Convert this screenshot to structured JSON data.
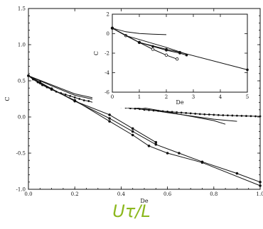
{
  "caption": "Uτ/L",
  "chart_data": [
    {
      "type": "line",
      "xlabel": "De",
      "ylabel": "C",
      "xlim": [
        0,
        1.0
      ],
      "ylim": [
        -1.0,
        1.5
      ],
      "x_ticks": [
        "0.0",
        "0.2",
        "0.4",
        "0.6",
        "0.8",
        "1.0"
      ],
      "y_ticks": [
        "-1.0",
        "-0.5",
        "0.0",
        "0.5",
        "1.0",
        "1.5"
      ],
      "series": [
        {
          "marker": "filled-dense",
          "x": [
            0,
            0.02,
            0.04,
            0.06,
            0.08,
            0.1,
            0.12,
            0.14,
            0.16,
            0.18,
            0.2,
            0.22,
            0.24,
            0.26,
            0.28,
            0.3,
            0.32,
            0.34,
            0.36,
            0.38,
            0.4,
            0.42,
            0.44,
            0.46,
            0.48,
            0.5,
            0.52,
            0.54,
            0.56,
            0.58,
            0.6,
            0.62,
            0.64,
            0.66,
            0.68,
            0.7,
            0.72,
            0.74,
            0.76,
            0.78,
            0.8,
            0.82,
            0.84,
            0.86,
            0.88,
            0.9,
            0.92,
            0.94,
            0.96,
            0.98,
            1.0
          ],
          "y": [
            0.57,
            0.52,
            0.48,
            0.44,
            0.41,
            0.38,
            0.35,
            0.33,
            0.31,
            0.29,
            0.27,
            0.25,
            0.23,
            0.22,
            0.2,
            0.19,
            0.18,
            0.17,
            0.16,
            0.15,
            0.14,
            0.13,
            0.12,
            0.115,
            0.11,
            0.1,
            0.095,
            0.09,
            0.085,
            0.08,
            0.075,
            0.07,
            0.065,
            0.06,
            0.055,
            0.05,
            0.045,
            0.04,
            0.037,
            0.034,
            0.03,
            0.027,
            0.024,
            0.022,
            0.02,
            0.018,
            0.016,
            0.014,
            0.012,
            0.01,
            0.01
          ]
        },
        {
          "marker": "filled",
          "x": [
            0,
            0.05,
            0.1,
            0.2,
            0.35,
            0.45,
            0.55,
            0.65,
            0.75,
            0.9,
            1.0
          ],
          "y": [
            0.57,
            0.48,
            0.39,
            0.22,
            -0.02,
            -0.2,
            -0.38,
            -0.5,
            -0.62,
            -0.78,
            -0.9
          ]
        },
        {
          "marker": "filled",
          "x": [
            0,
            0.05,
            0.1,
            0.2,
            0.35,
            0.45,
            0.52,
            0.6,
            0.75,
            1.0
          ],
          "y": [
            0.57,
            0.47,
            0.38,
            0.23,
            -0.06,
            -0.25,
            -0.4,
            -0.5,
            -0.63,
            -0.95
          ]
        },
        {
          "marker": "filled",
          "x": [
            0,
            0.1,
            0.2,
            0.35,
            0.45,
            0.55
          ],
          "y": [
            0.57,
            0.39,
            0.22,
            0.03,
            -0.16,
            -0.35
          ]
        },
        {
          "marker": "none",
          "x": [
            0,
            0.1,
            0.2,
            0.4,
            0.6,
            0.8,
            0.9
          ],
          "y": [
            0.57,
            0.43,
            0.3,
            0.16,
            0.06,
            -0.03,
            -0.06
          ]
        },
        {
          "marker": "none",
          "x": [
            0,
            0.2,
            0.4,
            0.6,
            0.8,
            0.85
          ],
          "y": [
            0.57,
            0.32,
            0.18,
            0.07,
            -0.05,
            -0.1
          ]
        }
      ]
    },
    {
      "type": "line",
      "xlabel": "De",
      "ylabel": "C",
      "xlim": [
        0,
        5
      ],
      "ylim": [
        -6,
        2
      ],
      "x_ticks": [
        "0",
        "1",
        "2",
        "3",
        "4",
        "5"
      ],
      "y_ticks": [
        "-6",
        "-4",
        "-2",
        "0",
        "2"
      ],
      "series": [
        {
          "marker": "none",
          "x": [
            0,
            0.5,
            1,
            1.5,
            2
          ],
          "y": [
            0.57,
            0.2,
            0.02,
            -0.05,
            -0.1
          ]
        },
        {
          "marker": "open",
          "x": [
            0,
            0.5,
            1,
            1.5,
            2,
            2.4
          ],
          "y": [
            0.57,
            -0.2,
            -0.9,
            -1.6,
            -2.2,
            -2.6
          ]
        },
        {
          "marker": "filled",
          "x": [
            0,
            1,
            1.5,
            2,
            2.5,
            2.75
          ],
          "y": [
            0.57,
            -0.9,
            -1.3,
            -1.7,
            -2.0,
            -2.2
          ]
        },
        {
          "marker": "filled",
          "x": [
            0,
            1,
            2,
            2.5,
            5
          ],
          "y": [
            0.57,
            -0.9,
            -1.6,
            -1.9,
            -3.7
          ]
        },
        {
          "marker": "none",
          "x": [
            0,
            0.5,
            1,
            1.5,
            2,
            2.75
          ],
          "y": [
            0.57,
            -0.2,
            -0.6,
            -1.0,
            -1.4,
            -2.1
          ]
        }
      ]
    }
  ]
}
